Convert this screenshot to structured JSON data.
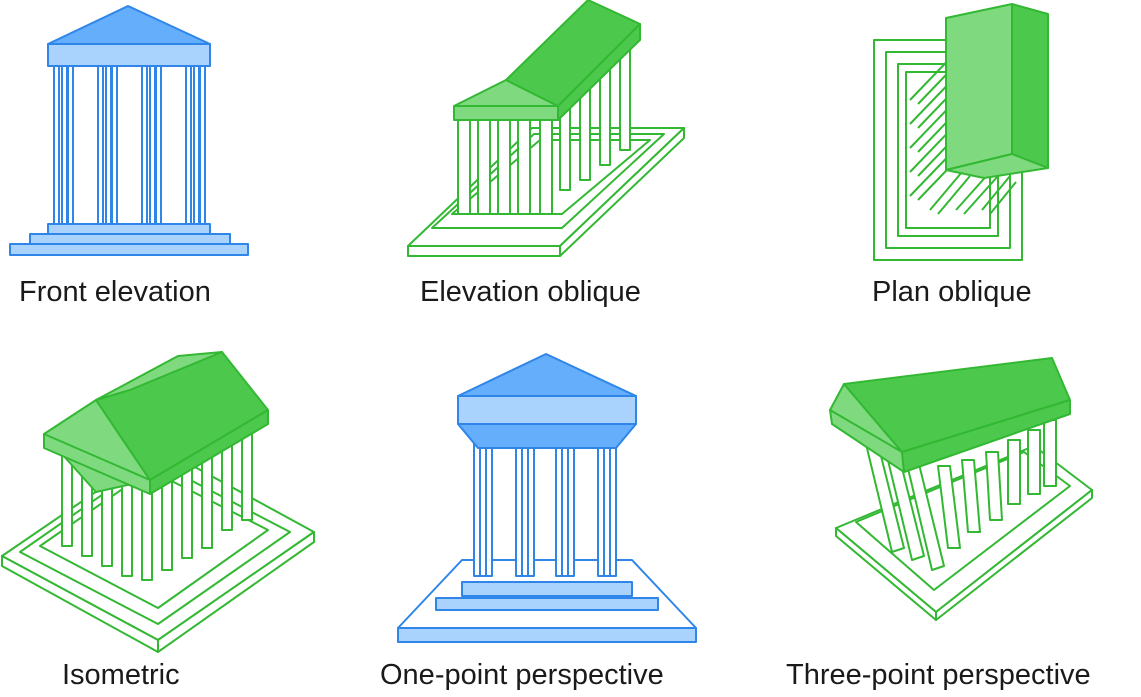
{
  "colors": {
    "blue_fill": "#64aefb",
    "blue_light": "#a9d2fd",
    "blue_stroke": "#2f86e8",
    "green_fill": "#4cc94c",
    "green_light": "#7fda7f",
    "green_stroke": "#33b833",
    "column_fill": "#ffffff",
    "text": "#1a1a1a"
  },
  "panels": [
    {
      "id": "front-elevation",
      "label": "Front elevation",
      "color": "blue"
    },
    {
      "id": "elevation-oblique",
      "label": "Elevation oblique",
      "color": "green"
    },
    {
      "id": "plan-oblique",
      "label": "Plan oblique",
      "color": "green"
    },
    {
      "id": "isometric",
      "label": "Isometric",
      "color": "green"
    },
    {
      "id": "one-point-perspective",
      "label": "One-point perspective",
      "color": "blue"
    },
    {
      "id": "three-point-perspective",
      "label": "Three-point perspective",
      "color": "green"
    }
  ]
}
